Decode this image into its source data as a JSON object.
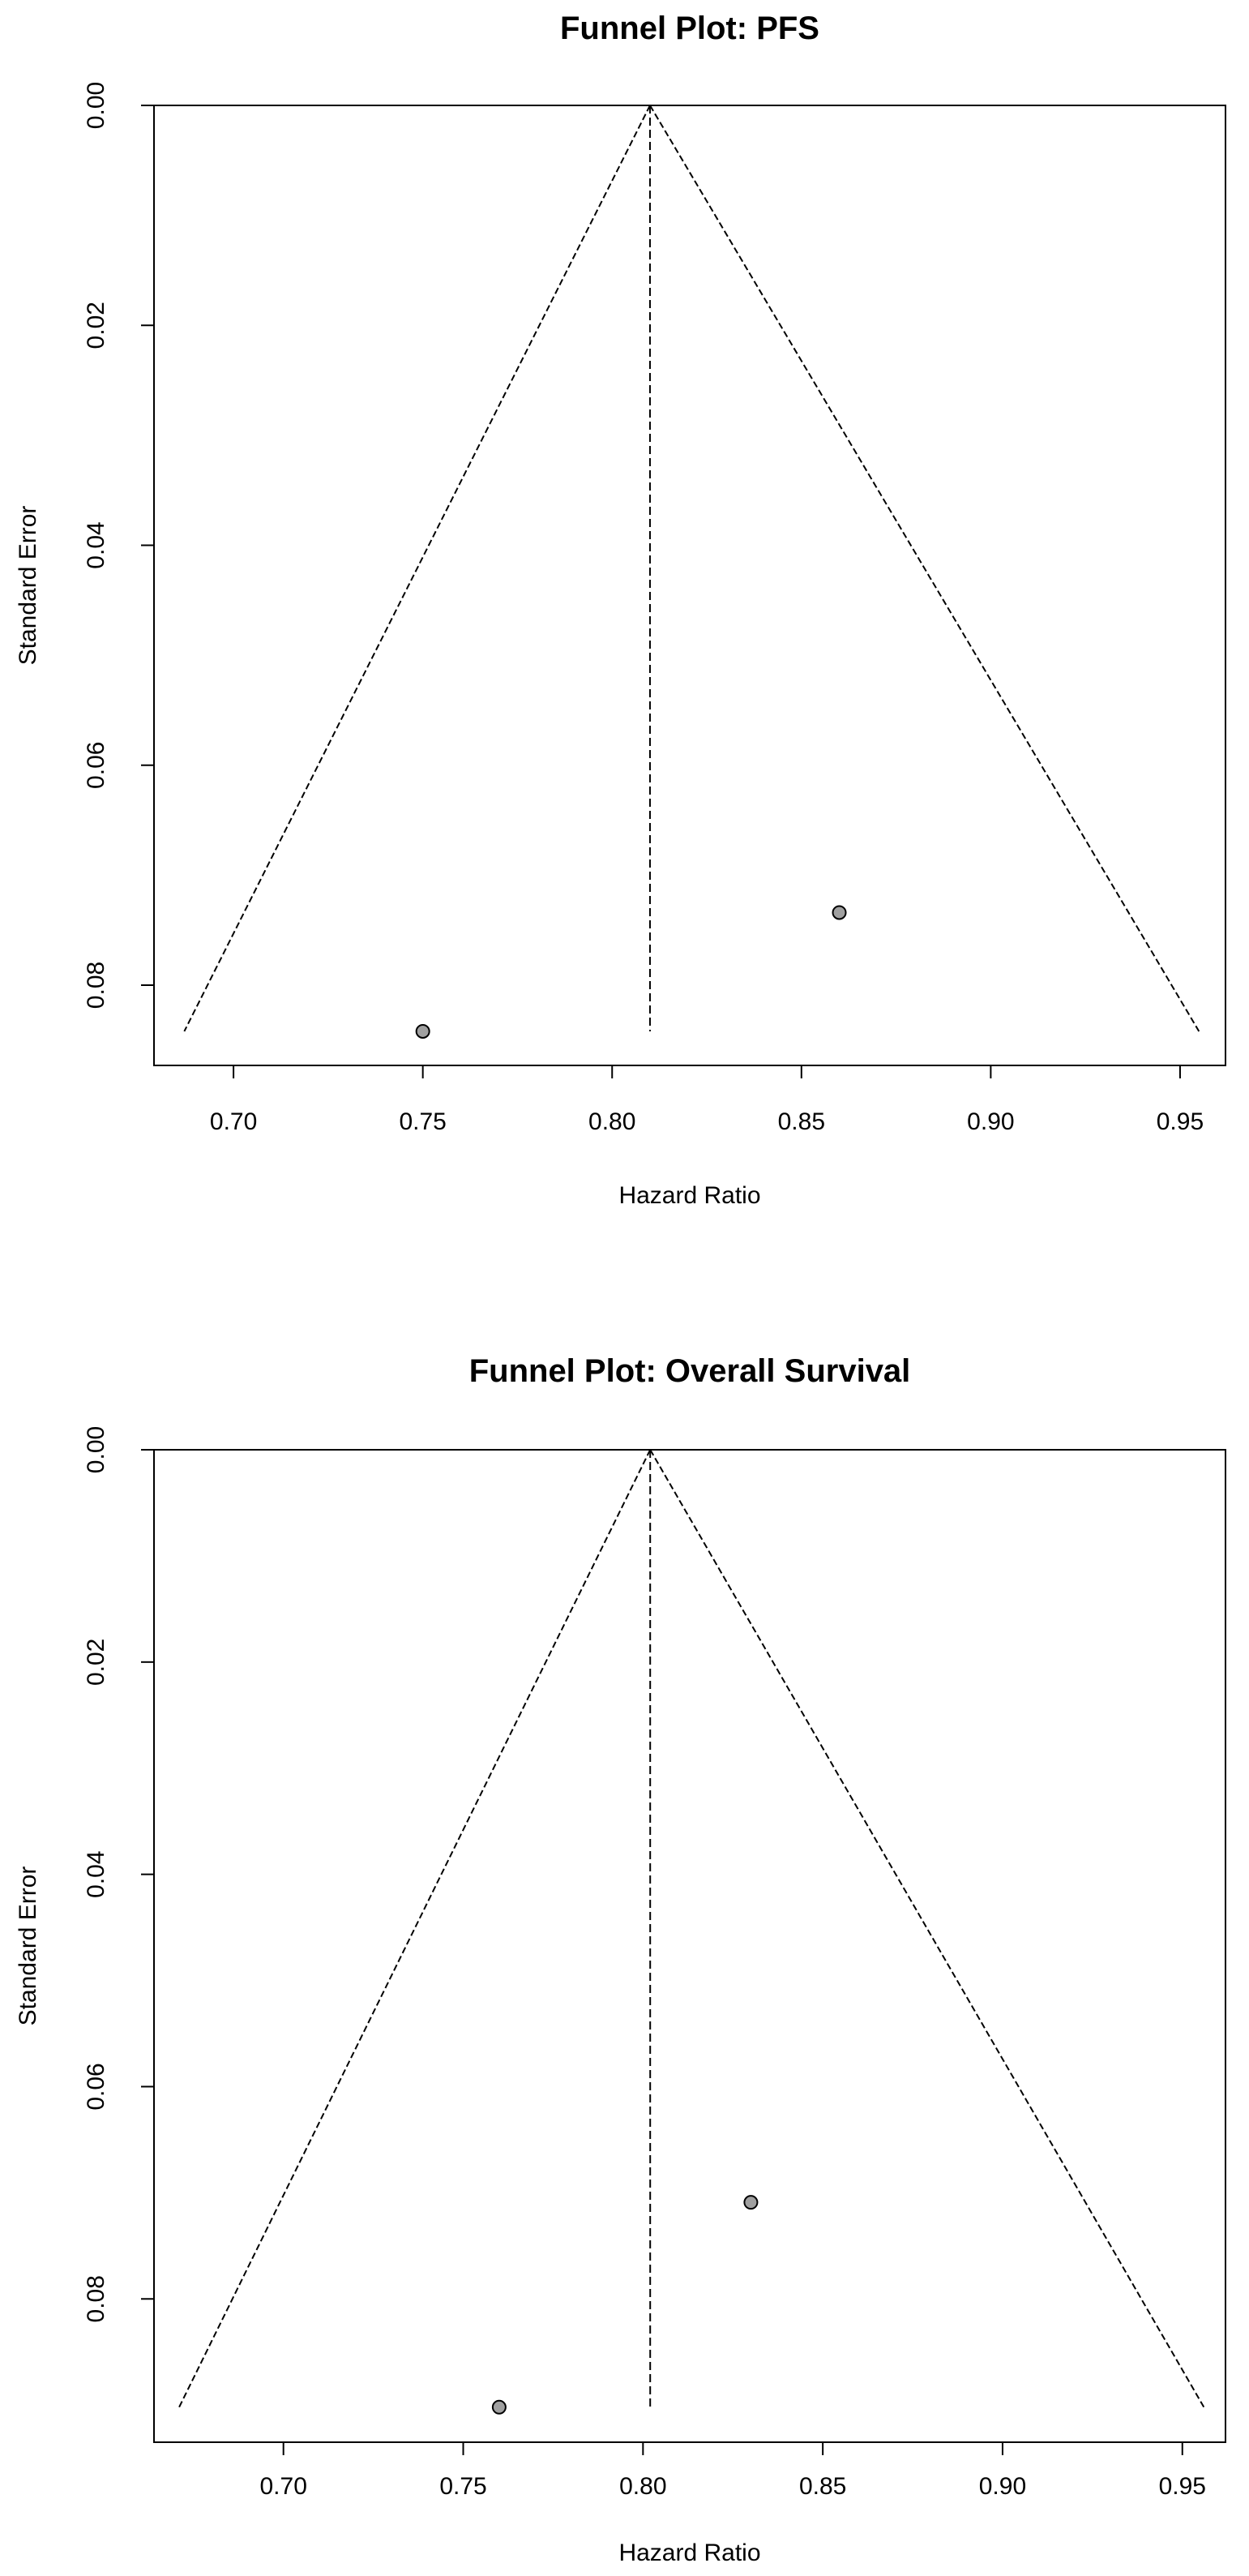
{
  "chart_data": [
    {
      "type": "scatter",
      "subtype": "funnel",
      "title": "Funnel Plot: PFS",
      "xlabel": "Hazard Ratio",
      "ylabel": "Standard Error",
      "xlim": [
        0.679,
        0.962
      ],
      "ylim": [
        0.0,
        0.0873
      ],
      "y_reversed": true,
      "xticks": [
        0.7,
        0.75,
        0.8,
        0.85,
        0.9,
        0.95
      ],
      "xtick_labels": [
        "0.70",
        "0.75",
        "0.80",
        "0.85",
        "0.90",
        "0.95"
      ],
      "yticks": [
        0.0,
        0.02,
        0.04,
        0.06,
        0.08
      ],
      "ytick_labels": [
        "0.00",
        "0.02",
        "0.04",
        "0.06",
        "0.08"
      ],
      "pooled_estimate": 0.81,
      "funnel_max_se": 0.0842,
      "funnel_bounds_at_max_se": [
        0.687,
        0.955
      ],
      "points": [
        {
          "x": 0.75,
          "y": 0.0842
        },
        {
          "x": 0.86,
          "y": 0.0734
        }
      ],
      "grid": false,
      "legend": "none"
    },
    {
      "type": "scatter",
      "subtype": "funnel",
      "title": "Funnel Plot: Overall Survival",
      "xlabel": "Hazard Ratio",
      "ylabel": "Standard Error",
      "xlim": [
        0.664,
        0.962
      ],
      "ylim": [
        0.0,
        0.0935
      ],
      "y_reversed": true,
      "xticks": [
        0.7,
        0.75,
        0.8,
        0.85,
        0.9,
        0.95
      ],
      "xtick_labels": [
        "0.70",
        "0.75",
        "0.80",
        "0.85",
        "0.90",
        "0.95"
      ],
      "yticks": [
        0.0,
        0.02,
        0.04,
        0.06,
        0.08
      ],
      "ytick_labels": [
        "0.00",
        "0.02",
        "0.04",
        "0.06",
        "0.08"
      ],
      "pooled_estimate": 0.802,
      "funnel_max_se": 0.0902,
      "funnel_bounds_at_max_se": [
        0.671,
        0.956
      ],
      "points": [
        {
          "x": 0.76,
          "y": 0.0902
        },
        {
          "x": 0.83,
          "y": 0.0709
        }
      ],
      "grid": false,
      "legend": "none"
    }
  ]
}
